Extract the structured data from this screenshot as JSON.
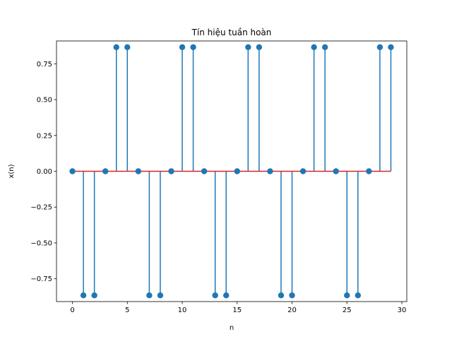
{
  "chart_data": {
    "type": "stem",
    "title": "Tín hiệu tuần hoàn",
    "xlabel": "n",
    "ylabel": "x(n)",
    "xlim": [
      -1.45,
      30.45
    ],
    "ylim": [
      -0.9093,
      0.9093
    ],
    "xticks": [
      0,
      5,
      10,
      15,
      20,
      25,
      30
    ],
    "xtick_labels": [
      "0",
      "5",
      "10",
      "15",
      "20",
      "25",
      "30"
    ],
    "yticks": [
      -0.75,
      -0.5,
      -0.25,
      0.0,
      0.25,
      0.5,
      0.75
    ],
    "ytick_labels": [
      "−0.75",
      "−0.50",
      "−0.25",
      "0.00",
      "0.25",
      "0.50",
      "0.75"
    ],
    "grid": false,
    "x": [
      0,
      1,
      2,
      3,
      4,
      5,
      6,
      7,
      8,
      9,
      10,
      11,
      12,
      13,
      14,
      15,
      16,
      17,
      18,
      19,
      20,
      21,
      22,
      23,
      24,
      25,
      26,
      27,
      28,
      29
    ],
    "values": [
      0,
      -0.866,
      -0.866,
      0,
      0.866,
      0.866,
      0,
      -0.866,
      -0.866,
      0,
      0.866,
      0.866,
      0,
      -0.866,
      -0.866,
      0,
      0.866,
      0.866,
      0,
      -0.866,
      -0.866,
      0,
      0.866,
      0.866,
      0,
      -0.866,
      -0.866,
      0,
      0.866,
      0.866
    ],
    "colors": {
      "stem": "#1f77b4",
      "marker": "#1f77b4",
      "baseline": "#d62728"
    }
  }
}
